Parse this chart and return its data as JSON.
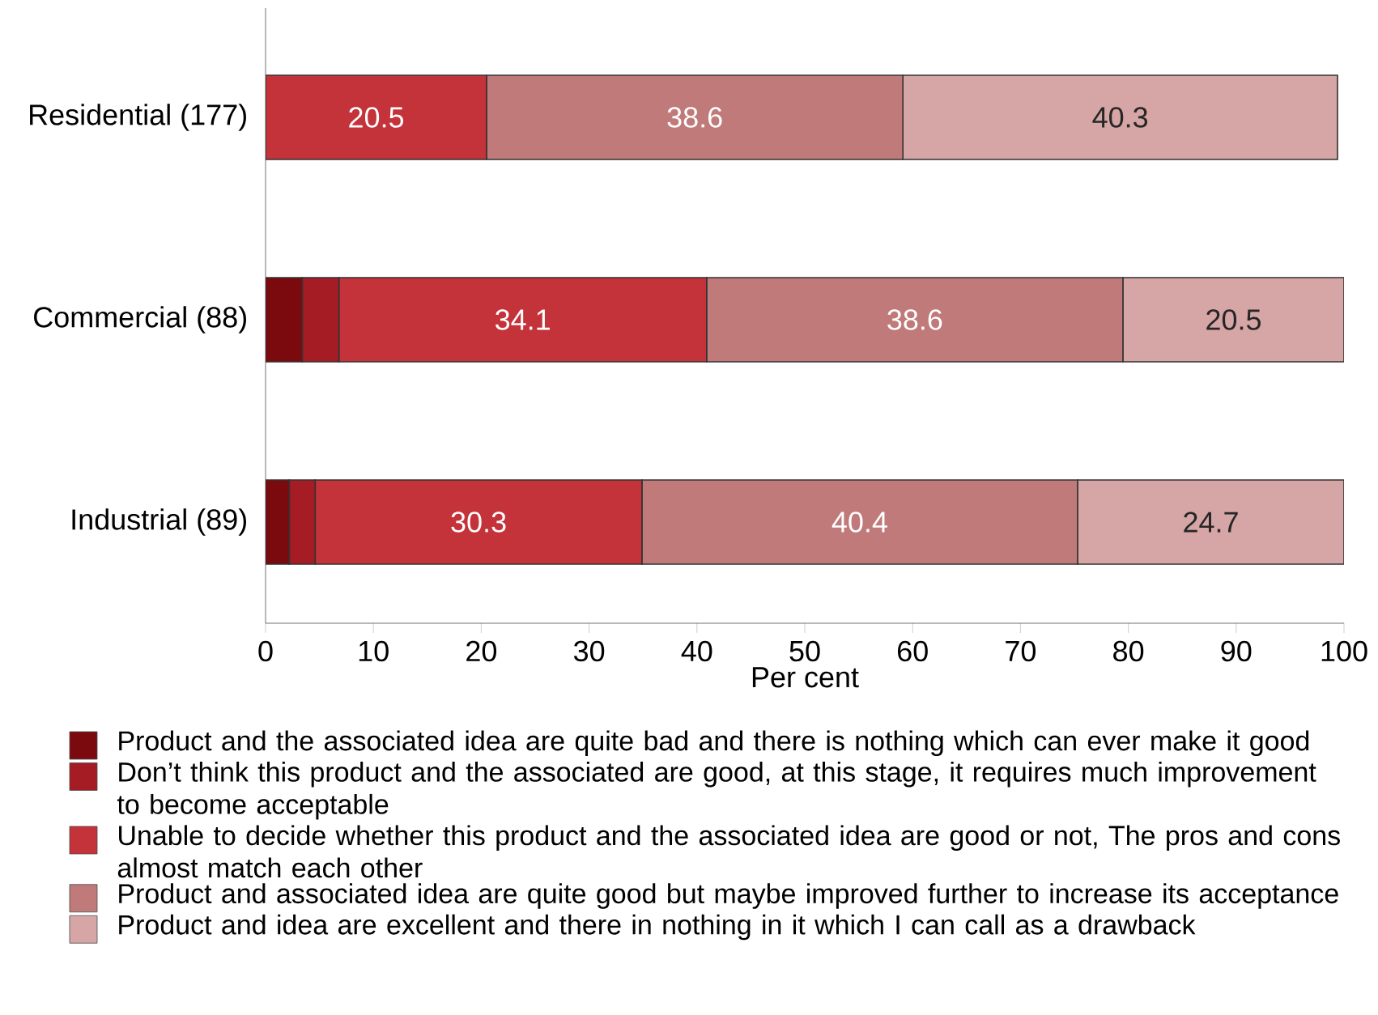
{
  "chart_data": {
    "type": "bar",
    "orientation": "horizontal",
    "stacked": true,
    "xlabel": "Per cent",
    "categories": [
      "Residential (177)",
      "Commercial (88)",
      "Industrial (89)"
    ],
    "xlim": [
      0,
      100
    ],
    "xticks": [
      0,
      10,
      20,
      30,
      40,
      50,
      60,
      70,
      80,
      90,
      100
    ],
    "legend": "bottom",
    "grid": false,
    "series": [
      {
        "name": "Product and the associated idea are quite bad and there is nothing which can ever make it good",
        "color": "#7b0a0f",
        "values": [
          0,
          3.4,
          2.2
        ],
        "value_labels": [
          null,
          null,
          null
        ]
      },
      {
        "name": "Don’t think this product and the associated are good, at this stage, it requires much improvement to become acceptable",
        "color": "#a51c24",
        "values": [
          0,
          3.4,
          2.4
        ],
        "value_labels": [
          null,
          null,
          null
        ]
      },
      {
        "name": "Unable to decide whether this product and the associated idea are good or not, The pros and cons almost match each other",
        "color": "#c4323a",
        "values": [
          20.5,
          34.1,
          30.3
        ],
        "value_labels": [
          "20.5",
          "34.1",
          "30.3"
        ]
      },
      {
        "name": "Product and associated idea are quite good but maybe improved further to increase its acceptance",
        "color": "#c07a7a",
        "values": [
          38.6,
          38.6,
          40.4
        ],
        "value_labels": [
          "38.6",
          "38.6",
          "40.4"
        ]
      },
      {
        "name": "Product and idea are excellent and there in nothing in it which I can call as a drawback",
        "color": "#d6a5a5",
        "values": [
          40.3,
          20.5,
          24.7
        ],
        "value_labels": [
          "40.3",
          "20.5",
          "24.7"
        ]
      }
    ]
  }
}
